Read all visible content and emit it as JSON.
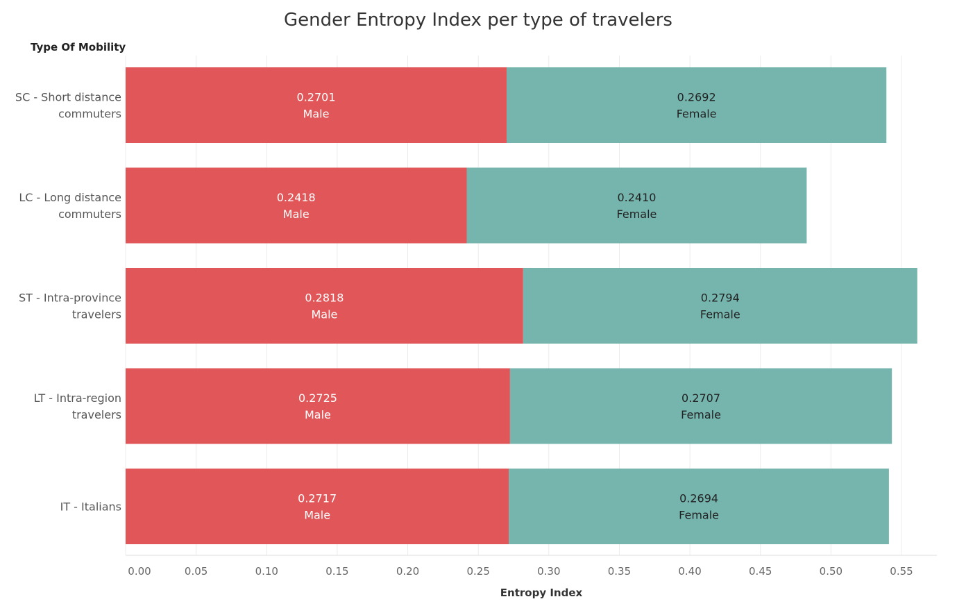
{
  "chart_data": {
    "type": "bar",
    "orientation": "horizontal",
    "stacked": true,
    "title": "Gender Entropy Index per type of travelers",
    "row_header": "Type Of Mobility",
    "xlabel": "Entropy Index",
    "xlim": [
      0,
      0.55
    ],
    "xticks": [
      "0.00",
      "0.05",
      "0.10",
      "0.15",
      "0.20",
      "0.25",
      "0.30",
      "0.35",
      "0.40",
      "0.45",
      "0.50",
      "0.55"
    ],
    "grid": true,
    "categories": [
      [
        "SC - Short distance",
        "commuters"
      ],
      [
        "LC - Long distance",
        "commuters"
      ],
      [
        "ST - Intra-province",
        "travelers"
      ],
      [
        "LT - Intra-region",
        "travelers"
      ],
      [
        "IT - Italians"
      ]
    ],
    "series": [
      {
        "name": "Male",
        "color": "#e15759",
        "values": [
          0.2701,
          0.2418,
          0.2818,
          0.2725,
          0.2717
        ],
        "labels": [
          "0.2701",
          "0.2418",
          "0.2818",
          "0.2725",
          "0.2717"
        ]
      },
      {
        "name": "Female",
        "color": "#76b5ae",
        "values": [
          0.2692,
          0.241,
          0.2794,
          0.2707,
          0.2694
        ],
        "labels": [
          "0.2692",
          "0.2410",
          "0.2794",
          "0.2707",
          "0.2694"
        ]
      }
    ]
  }
}
